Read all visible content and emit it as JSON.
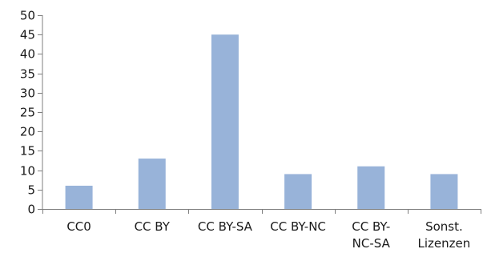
{
  "chart_data": {
    "type": "bar",
    "title": "",
    "xlabel": "",
    "ylabel": "",
    "categories": [
      [
        "CC0"
      ],
      [
        "CC BY"
      ],
      [
        "CC BY-SA"
      ],
      [
        "CC BY-NC"
      ],
      [
        "CC BY-",
        "NC-SA"
      ],
      [
        "Sonst.",
        "Lizenzen"
      ]
    ],
    "values": [
      6,
      13,
      45,
      9,
      11,
      9
    ],
    "ylim": [
      0,
      50
    ],
    "yticks": [
      0,
      5,
      10,
      15,
      20,
      25,
      30,
      35,
      40,
      45,
      50
    ],
    "grid": false,
    "legend": "none",
    "bar_color": "#98b3d9"
  }
}
